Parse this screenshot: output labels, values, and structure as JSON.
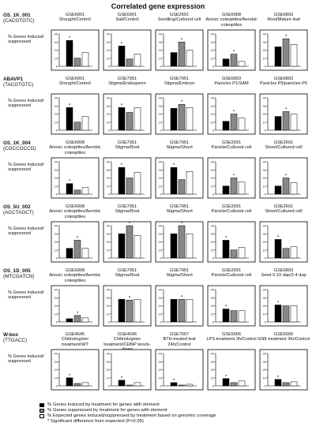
{
  "title": "Correlated gene expression",
  "y_label": "% Genes induced/ suppressed",
  "legend": [
    {
      "label": "% Genes induced by treatment for genes with element",
      "color": "#000000"
    },
    {
      "label": "% Genes suppressed by treatment for genes with element",
      "color": "#888888"
    },
    {
      "label": "% Expected genes induced/suppressed by treatment based on genomic coverage",
      "color": "#ffffff"
    }
  ],
  "footnote": "* Significant difference from expected (P<0.05)",
  "chart_data": [
    {
      "row": 1,
      "motif": "OS_1K_001",
      "sequence": "(CACGTGTC)",
      "panels": [
        {
          "gse": "GSE6901",
          "label": "Drought/Control",
          "ymax": 40,
          "ticks": [
            0,
            10,
            20,
            30,
            40
          ],
          "values": [
            32,
            10,
            17
          ],
          "star": 0
        },
        {
          "gse": "GSE6901",
          "label": "Salt/Control",
          "ymax": 40,
          "ticks": [
            0,
            10,
            20,
            30,
            40
          ],
          "values": [
            25,
            9,
            15
          ],
          "star": 0
        },
        {
          "gse": "GSE2691",
          "label": "Seedling/Cultured cell",
          "ymax": 40,
          "ticks": [
            0,
            10,
            20,
            30,
            40
          ],
          "values": [
            17,
            30,
            20
          ],
          "star": 1
        },
        {
          "gse": "GSE6908",
          "label": "Anoxic coleoptiles/Aerobic coleoptiles",
          "ymax": 40,
          "ticks": [
            0,
            10,
            20,
            30,
            40
          ],
          "values": [
            9,
            15,
            6
          ],
          "star": 1
        },
        {
          "gse": "GSE6893",
          "label": "Root/Mature leaf",
          "ymax": 40,
          "ticks": [
            0,
            10,
            20,
            30,
            40
          ],
          "values": [
            24,
            34,
            27
          ],
          "star": 1
        }
      ]
    },
    {
      "row": 2,
      "motif": "ABAVP1",
      "sequence": "(TACGTGTC)",
      "panels": [
        {
          "gse": "GSE6901",
          "label": "Drought/Control",
          "ymax": 40,
          "ticks": [
            0,
            10,
            20,
            30,
            40
          ],
          "values": [
            28,
            10,
            17
          ],
          "star": 0
        },
        {
          "gse": "GSE7951",
          "label": "Stigma/Endosperm",
          "ymax": 40,
          "ticks": [
            0,
            10,
            20,
            30,
            40
          ],
          "values": [
            28,
            22,
            28
          ],
          "star": 0
        },
        {
          "gse": "GSE7951",
          "label": "Stigma/Embryo",
          "ymax": 40,
          "ticks": [
            0,
            10,
            20,
            30,
            40
          ],
          "values": [
            27,
            32,
            28
          ],
          "star": 1
        },
        {
          "gse": "GSE6893",
          "label": "Panicles P1/SAM",
          "ymax": 40,
          "ticks": [
            0,
            10,
            20,
            30,
            40
          ],
          "values": [
            11,
            20,
            15
          ],
          "star": 1
        },
        {
          "gse": "GSE6893",
          "label": "Panicles P5/panicles P5",
          "ymax": 40,
          "ticks": [
            0,
            10,
            20,
            30,
            40
          ],
          "values": [
            17,
            23,
            20
          ],
          "star": 1
        }
      ]
    },
    {
      "row": 3,
      "motif": "OS_1K_004",
      "sequence": "(CGCCGCCG)",
      "panels": [
        {
          "gse": "GSE6908",
          "label": "Anoxic coleoptiles/Aerobic coleoptiles",
          "ymax": 40,
          "ticks": [
            0,
            10,
            20,
            30,
            40
          ],
          "values": [
            13,
            5,
            8
          ],
          "star": 0
        },
        {
          "gse": "GSE7951",
          "label": "Stigma/Root",
          "ymax": 40,
          "ticks": [
            0,
            10,
            20,
            30,
            40
          ],
          "values": [
            33,
            20,
            27
          ],
          "star": 0
        },
        {
          "gse": "GSE7951",
          "label": "Stigma/Shoot",
          "ymax": 40,
          "ticks": [
            0,
            10,
            20,
            30,
            40
          ],
          "values": [
            33,
            18,
            28
          ],
          "star": 0
        },
        {
          "gse": "GSE2691",
          "label": "Panicle/Cultured cell",
          "ymax": 40,
          "ticks": [
            0,
            10,
            20,
            30,
            40
          ],
          "values": [
            10,
            20,
            15
          ],
          "star": 1
        },
        {
          "gse": "GSE2691",
          "label": "Shoot/Cultured cell",
          "ymax": 40,
          "ticks": [
            0,
            10,
            20,
            30,
            40
          ],
          "values": [
            10,
            20,
            14
          ],
          "star": 1
        }
      ]
    },
    {
      "row": 4,
      "motif": "OS_5U_002",
      "sequence": "(AGCTAGCT)",
      "panels": [
        {
          "gse": "GSE6908",
          "label": "Anoxic coleoptiles/Aerobic coleoptiles",
          "ymax": 40,
          "ticks": [
            0,
            10,
            20,
            30,
            40
          ],
          "values": [
            12,
            22,
            12
          ],
          "star": 1
        },
        {
          "gse": "GSE7951",
          "label": "Stigma/Root",
          "ymax": 40,
          "ticks": [
            0,
            10,
            20,
            30,
            40
          ],
          "values": [
            30,
            40,
            28
          ],
          "star": 1
        },
        {
          "gse": "GSE7951",
          "label": "Stigma/Shoot",
          "ymax": 40,
          "ticks": [
            0,
            10,
            20,
            30,
            40
          ],
          "values": [
            30,
            40,
            30
          ],
          "star": 1
        },
        {
          "gse": "GSE2691",
          "label": "Panicle/Cultured cell",
          "ymax": 40,
          "ticks": [
            0,
            10,
            20,
            30,
            40
          ],
          "values": [
            22,
            10,
            13
          ],
          "star": 0
        },
        {
          "gse": "GSE2691",
          "label": "Shoot/Cultured cell",
          "ymax": 40,
          "ticks": [
            0,
            10,
            20,
            30,
            40
          ],
          "values": [
            23,
            12,
            14
          ],
          "star": 0
        }
      ]
    },
    {
      "row": 5,
      "motif": "OS_1D_005",
      "sequence": "(MTCGATCN)",
      "panels": [
        {
          "gse": "GSE6908",
          "label": "Anoxic coleoptiles/Aerobic coleoptiles",
          "ymax": 40,
          "ticks": [
            0,
            10,
            20,
            30,
            40
          ],
          "values": [
            4,
            8,
            5
          ],
          "star": 1
        },
        {
          "gse": "GSE7951",
          "label": "Stigma/Root",
          "ymax": 40,
          "ticks": [
            0,
            10,
            20,
            30,
            40
          ],
          "values": [
            28,
            27,
            28
          ],
          "star": 1
        },
        {
          "gse": "GSE7951",
          "label": "Stigma/Shoot",
          "ymax": 40,
          "ticks": [
            0,
            10,
            20,
            30,
            40
          ],
          "values": [
            28,
            28,
            28
          ],
          "star": 1
        },
        {
          "gse": "GSE2691",
          "label": "Panicle/Cultured cell",
          "ymax": 40,
          "ticks": [
            0,
            10,
            20,
            30,
            40
          ],
          "values": [
            16,
            14,
            14
          ],
          "star": 0
        },
        {
          "gse": "GSE6893",
          "label": "Seed 5-10 dap/3-4 dap",
          "ymax": 40,
          "ticks": [
            0,
            10,
            20,
            30,
            40
          ],
          "values": [
            21,
            20,
            20
          ],
          "star": 0
        }
      ]
    },
    {
      "row": 6,
      "motif": "W-box",
      "sequence": "(TTGACC)",
      "panels": [
        {
          "gse": "GSE4645",
          "label": "Chitinologmer treatment/WT",
          "ymax": 40,
          "ticks": [
            0,
            10,
            20,
            30,
            40
          ],
          "values": [
            10,
            3,
            4
          ],
          "star": 0
        },
        {
          "gse": "GSE4645",
          "label": "Chitinologmer treatment/CEBiP knock-down",
          "ymax": 40,
          "ticks": [
            0,
            10,
            20,
            30,
            40
          ],
          "values": [
            7,
            1,
            4
          ],
          "star": 0
        },
        {
          "gse": "GSE7567",
          "label": "BTH-treated leaf 24h/Control",
          "ymax": 40,
          "ticks": [
            0,
            10,
            20,
            30,
            40
          ],
          "values": [
            4,
            1,
            2
          ],
          "star": 0
        },
        {
          "gse": "GSE5906",
          "label": "LPS treatment 3h/Control",
          "ymax": 40,
          "ticks": [
            0,
            10,
            20,
            30,
            40
          ],
          "values": [
            9,
            4,
            6
          ],
          "star": 0
        },
        {
          "gse": "GSE5906",
          "label": "GN8 treatment 3hr/Control",
          "ymax": 40,
          "ticks": [
            0,
            10,
            20,
            30,
            40
          ],
          "values": [
            8,
            4,
            5
          ],
          "star": 0
        }
      ]
    }
  ]
}
